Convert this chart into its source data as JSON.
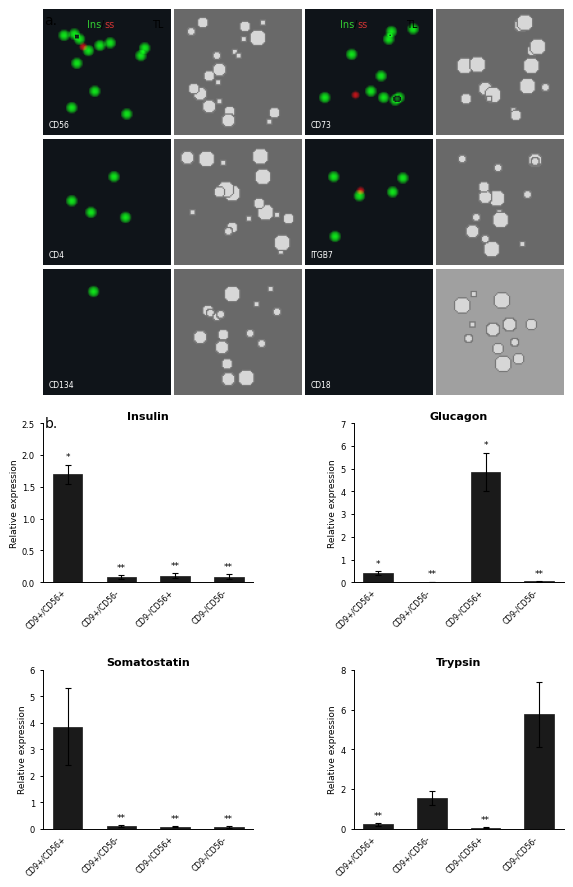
{
  "panel_a_labels_left": [
    "CD56",
    "CD4",
    "CD134"
  ],
  "panel_a_labels_right": [
    "CD73",
    "ITGB7",
    "CD18"
  ],
  "bar_categories": [
    "CD9+/CD56+",
    "CD9+/CD56-",
    "CD9-/CD56+",
    "CD9-/CD56-"
  ],
  "bar_color": "#1a1a1a",
  "bar_width": 0.55,
  "insulin": {
    "title": "Insulin",
    "values": [
      1.7,
      0.08,
      0.1,
      0.09
    ],
    "errors": [
      0.15,
      0.03,
      0.04,
      0.035
    ],
    "ylim": [
      0,
      2.5
    ],
    "yticks": [
      0.0,
      0.5,
      1.0,
      1.5,
      2.0,
      2.5
    ],
    "sig": [
      "*",
      "**",
      "**",
      "**"
    ]
  },
  "glucagon": {
    "title": "Glucagon",
    "values": [
      0.4,
      0.02,
      4.85,
      0.04
    ],
    "errors": [
      0.1,
      0.01,
      0.85,
      0.015
    ],
    "ylim": [
      0,
      7.0
    ],
    "yticks": [
      0.0,
      1.0,
      2.0,
      3.0,
      4.0,
      5.0,
      6.0,
      7.0
    ],
    "sig": [
      "*",
      "**",
      "*",
      "**"
    ]
  },
  "somatostatin": {
    "title": "Somatostatin",
    "values": [
      3.85,
      0.1,
      0.08,
      0.07
    ],
    "errors": [
      1.45,
      0.035,
      0.025,
      0.03
    ],
    "ylim": [
      0,
      6.0
    ],
    "yticks": [
      0.0,
      1.0,
      2.0,
      3.0,
      4.0,
      5.0,
      6.0
    ],
    "sig": [
      "",
      "**",
      "**",
      "**"
    ]
  },
  "trypsin": {
    "title": "Trypsin",
    "values": [
      0.22,
      1.55,
      0.06,
      5.75
    ],
    "errors": [
      0.06,
      0.35,
      0.02,
      1.65
    ],
    "ylim": [
      0,
      8.0
    ],
    "yticks": [
      0.0,
      2.0,
      4.0,
      6.0,
      8.0
    ],
    "sig": [
      "**",
      "",
      "**",
      ""
    ]
  },
  "fluor_panels": [
    {
      "has_green": true,
      "has_red": true,
      "n_green": 12,
      "n_red": 1,
      "rng_seed": 1
    },
    {
      "has_green": true,
      "has_red": false,
      "n_green": 4,
      "n_red": 0,
      "rng_seed": 2
    },
    {
      "has_green": true,
      "has_red": false,
      "n_green": 1,
      "n_red": 0,
      "rng_seed": 3
    },
    {
      "has_green": true,
      "has_red": true,
      "n_green": 10,
      "n_red": 1,
      "rng_seed": 4
    },
    {
      "has_green": true,
      "has_red": true,
      "n_green": 5,
      "n_red": 1,
      "rng_seed": 5
    },
    {
      "has_green": false,
      "has_red": false,
      "n_green": 0,
      "n_red": 0,
      "rng_seed": 6
    }
  ],
  "tl_panels": [
    {
      "n_cells": 20,
      "bright": false,
      "rng_seed": 11
    },
    {
      "n_cells": 18,
      "bright": false,
      "rng_seed": 21
    },
    {
      "n_cells": 16,
      "bright": false,
      "rng_seed": 31
    },
    {
      "n_cells": 15,
      "bright": false,
      "rng_seed": 41
    },
    {
      "n_cells": 15,
      "bright": false,
      "rng_seed": 51
    },
    {
      "n_cells": 12,
      "bright": true,
      "rng_seed": 61
    }
  ],
  "ylabel": "Relative expression",
  "figure_bg": "#ffffff",
  "axes_bg": "#ffffff",
  "bar_edge_color": "#1a1a1a"
}
